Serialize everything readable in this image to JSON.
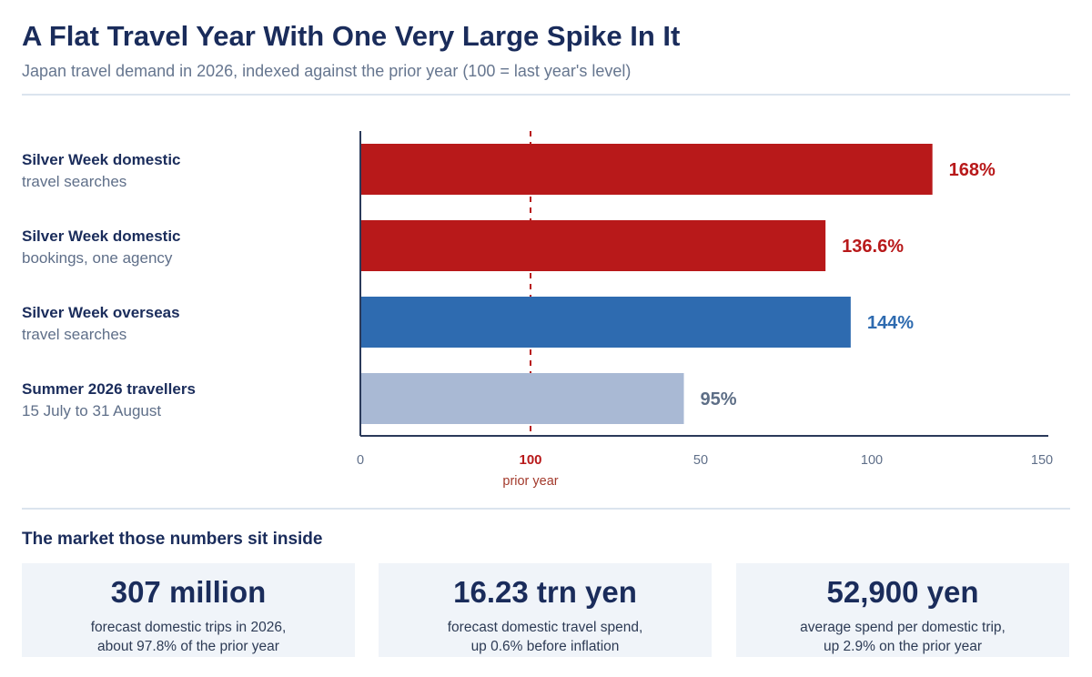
{
  "header": {
    "title": "A Flat Travel Year With One Very Large Spike In It",
    "subtitle": "Japan travel demand in 2026, indexed against the prior year (100 = last year's level)"
  },
  "chart_data": {
    "type": "bar",
    "orientation": "horizontal",
    "categories": [
      {
        "line1": "Silver Week domestic",
        "line2": "travel searches"
      },
      {
        "line1": "Silver Week domestic",
        "line2": "bookings, one agency"
      },
      {
        "line1": "Silver Week overseas",
        "line2": "travel searches"
      },
      {
        "line1": "Summer 2026 travellers",
        "line2": "15 July to 31 August"
      }
    ],
    "values": [
      168,
      136.6,
      144,
      95
    ],
    "value_labels": [
      "168%",
      "136.6%",
      "144%",
      "95%"
    ],
    "bar_colors": [
      "#b8191a",
      "#b8191a",
      "#2e6bb0",
      "#a9b9d4"
    ],
    "label_colors": [
      "#b8191a",
      "#b8191a",
      "#2e6bb0",
      "#5d6e86"
    ],
    "xlim": [
      0,
      150
    ],
    "xticks": [
      {
        "value": 0,
        "label": "0"
      },
      {
        "value": 50,
        "label": "50"
      },
      {
        "value": 100,
        "label": "100"
      },
      {
        "value": 150,
        "label": "150"
      }
    ],
    "reference_line": {
      "value": 100,
      "label": "100",
      "sublabel": "prior year",
      "color": "#b8191a"
    },
    "grid": false,
    "legend": "none"
  },
  "market": {
    "heading": "The market those numbers sit inside",
    "stats": [
      {
        "value": "307 million",
        "line1": "forecast domestic trips in 2026,",
        "line2": "about 97.8% of the prior year"
      },
      {
        "value": "16.23 trn yen",
        "line1": "forecast domestic travel spend,",
        "line2": "up 0.6% before inflation"
      },
      {
        "value": "52,900 yen",
        "line1": "average spend per domestic trip,",
        "line2": "up 2.9% on the prior year"
      }
    ]
  }
}
